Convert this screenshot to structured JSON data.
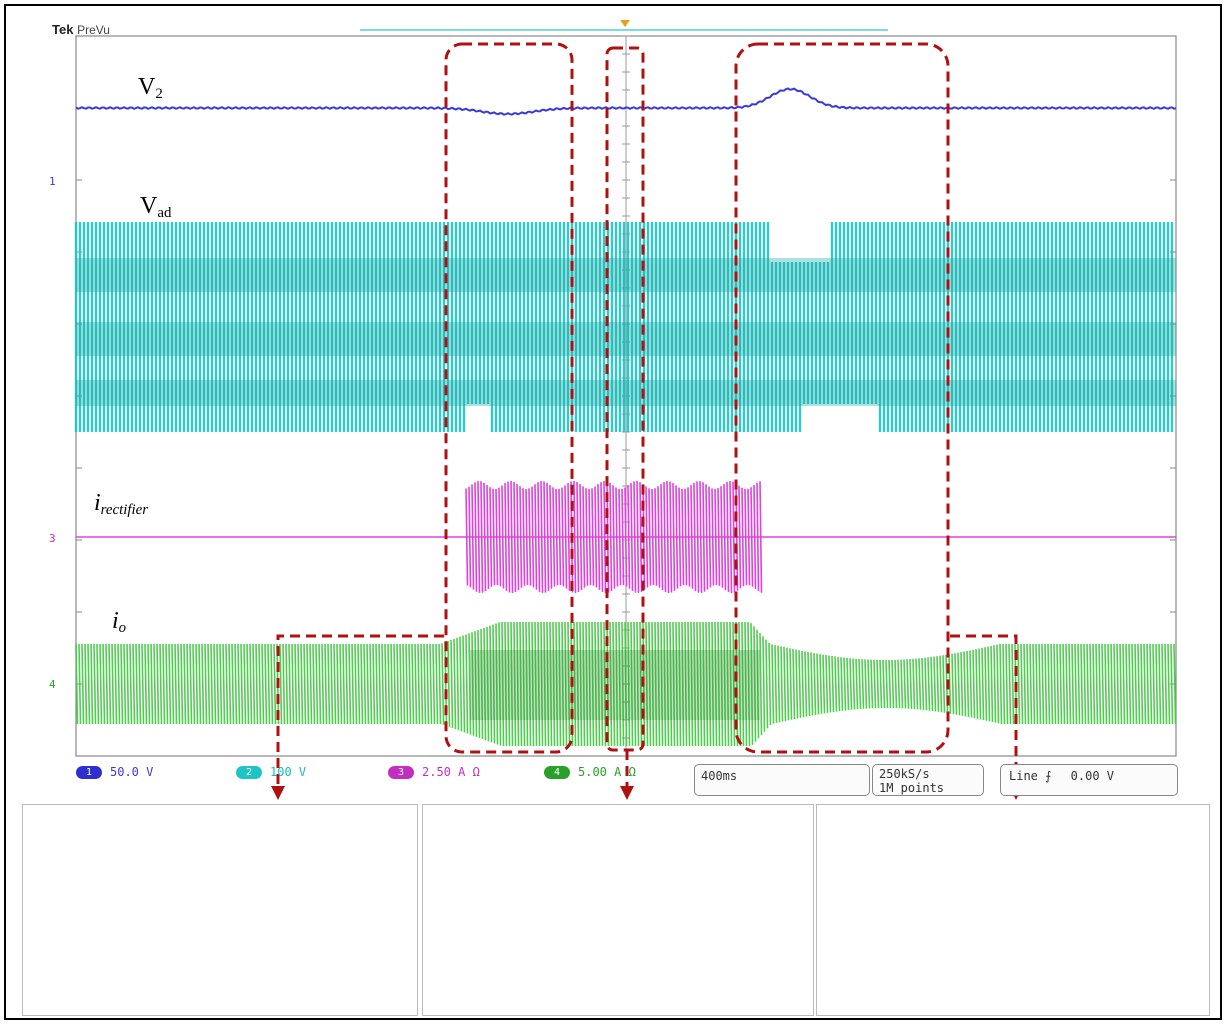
{
  "header": {
    "brand": "Tek",
    "mode": "PreVu"
  },
  "traces": {
    "v2": {
      "main": "V",
      "sub": "2",
      "color": "#3a3ad6"
    },
    "vad": {
      "main": "V",
      "sub": "ad",
      "color": "#1fc4c4"
    },
    "irect": {
      "main": "i",
      "sub": "rectifier",
      "color": "#e040e0"
    },
    "io": {
      "main": "i",
      "sub": "o",
      "color": "#3ec83e"
    }
  },
  "channel_markers": {
    "ch1": "1",
    "ch3": "3",
    "ch4": "4"
  },
  "status_bar": {
    "ch1": {
      "num": "1",
      "scale": "50.0 V"
    },
    "ch2": {
      "num": "2",
      "scale": "100 V"
    },
    "ch3": {
      "num": "3",
      "scale": "2.50 A Ω"
    },
    "ch4": {
      "num": "4",
      "scale": "5.00 A Ω"
    },
    "timebase": "400ms",
    "sample_rate": "250kS/s",
    "record_length": "1M points",
    "trigger_source": "Line",
    "trigger_symbol": "⨍",
    "trigger_level": "0.00 V"
  },
  "colors": {
    "highlight": "#b01010",
    "grid": "#9a9a9a"
  }
}
